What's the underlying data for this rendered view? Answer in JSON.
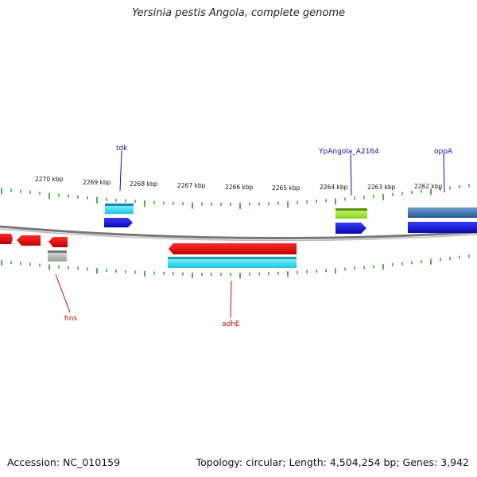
{
  "title": "Yersinia pestis Angola, complete genome",
  "footer": {
    "accession": "Accession: NC_010159",
    "stats": "Topology: circular; Length: 4,504,254 bp; Genes: 3,942"
  },
  "scale_labels": [
    "2270 kbp",
    "2269 kbp",
    "2268 kbp",
    "2267 kbp",
    "2266 kbp",
    "2265 kbp",
    "2264 kbp",
    "2263 kbp",
    "2262 kbp"
  ],
  "gene_labels": {
    "tdk": "tdk",
    "ypangola": "YpAngola_A2164",
    "oppA": "oppA",
    "hns": "hns",
    "adhE": "adhE"
  },
  "colors": {
    "forward_cds": "#1a1adb",
    "reverse_cds": "#e01010",
    "forward_gene": "#2ec8e0",
    "reverse_gene": "#35e8f0",
    "pseudo": "#a8e83a",
    "ticks": "#1e8c1e",
    "backbone": "#777777",
    "label_forward": "#1010a0",
    "label_reverse": "#c01010"
  }
}
